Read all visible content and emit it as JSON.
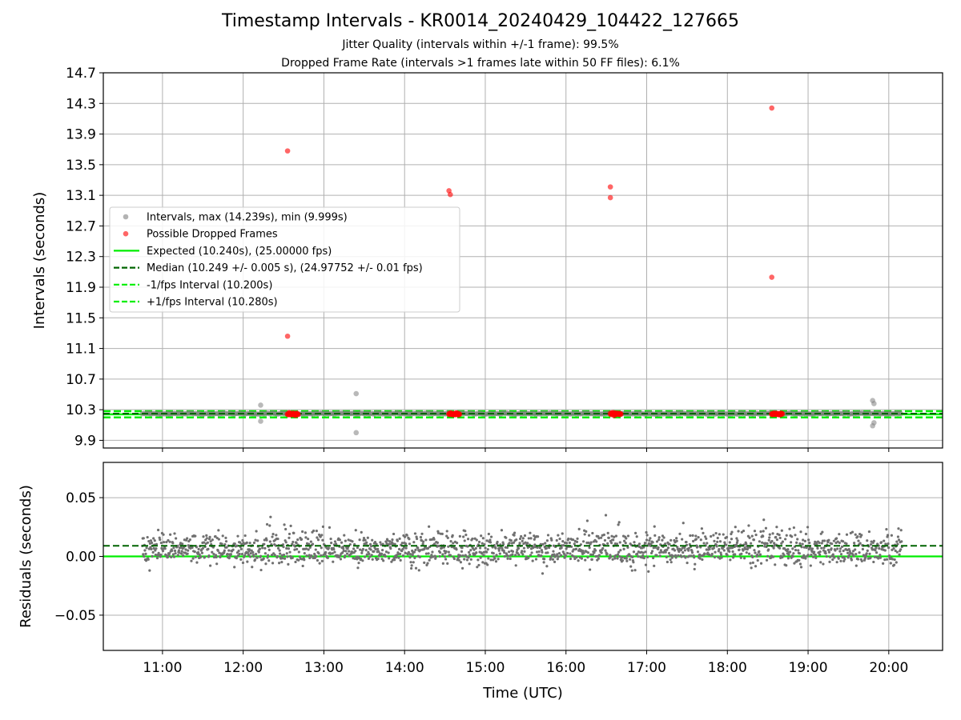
{
  "figure": {
    "title": "Timestamp Intervals - KR0014_20240429_104422_127665",
    "subtitle_1": "Jitter Quality (intervals within +/-1 frame): 99.5%",
    "subtitle_2": "Dropped Frame Rate (intervals >1 frames late within 50 FF files): 6.1%"
  },
  "chart_data": [
    {
      "type": "scatter",
      "panel": "top",
      "ylabel": "Intervals (seconds)",
      "xlabel": "",
      "ylim": [
        9.8,
        14.7
      ],
      "xlim": [
        "10:16",
        "20:40"
      ],
      "yticks": [
        "9.9",
        "10.3",
        "10.7",
        "11.1",
        "11.5",
        "11.9",
        "12.3",
        "12.7",
        "13.1",
        "13.5",
        "13.9",
        "14.3",
        "14.7"
      ],
      "xticks": [
        "11:00",
        "12:00",
        "13:00",
        "14:00",
        "15:00",
        "16:00",
        "17:00",
        "18:00",
        "19:00",
        "20:00"
      ],
      "grid": true,
      "legend_position": "center-left",
      "legend": [
        {
          "label": "Intervals, max (14.239s), min (9.999s)",
          "kind": "marker",
          "color": "#808080"
        },
        {
          "label": "Possible Dropped Frames",
          "kind": "marker",
          "color": "#ff0000"
        },
        {
          "label": "Expected (10.240s), (25.00000 fps)",
          "kind": "solid",
          "color": "#00ee00"
        },
        {
          "label": "Median (10.249 +/- 0.005 s), (24.97752 +/- 0.01 fps)",
          "kind": "dashed",
          "color": "#006400"
        },
        {
          "label": "-1/fps Interval (10.200s)",
          "kind": "dashed",
          "color": "#00ee00"
        },
        {
          "label": "+1/fps Interval (10.280s)",
          "kind": "dashed",
          "color": "#00ee00"
        }
      ],
      "reference_lines": {
        "expected": 10.24,
        "median": 10.249,
        "minus_1fps": 10.2,
        "plus_1fps": 10.28
      },
      "series": [
        {
          "name": "Intervals, max (14.239s), min (9.999s)",
          "color": "#808080",
          "points": [
            {
              "x": "12:13",
              "y": 10.36
            },
            {
              "x": "12:13",
              "y": 10.15
            },
            {
              "x": "13:24",
              "y": 10.51
            },
            {
              "x": "13:24",
              "y": 10.0
            },
            {
              "x": "19:48",
              "y": 10.42
            },
            {
              "x": "19:49",
              "y": 10.38
            },
            {
              "x": "19:49",
              "y": 10.13
            },
            {
              "x": "19:48",
              "y": 10.09
            }
          ],
          "baseline_band": {
            "x_start": "10:45",
            "x_end": "20:10",
            "y": 10.249
          }
        },
        {
          "name": "Possible Dropped Frames",
          "color": "#ff0000",
          "points": [
            {
              "x": "12:33",
              "y": 13.68
            },
            {
              "x": "12:33",
              "y": 11.26
            },
            {
              "x": "14:33",
              "y": 13.16
            },
            {
              "x": "14:34",
              "y": 13.11
            },
            {
              "x": "16:33",
              "y": 13.21
            },
            {
              "x": "16:33",
              "y": 13.07
            },
            {
              "x": "18:33",
              "y": 14.24
            },
            {
              "x": "18:33",
              "y": 12.03
            }
          ],
          "clusters": [
            {
              "x_start": "12:33",
              "x_end": "12:41",
              "y": 10.245
            },
            {
              "x_start": "14:33",
              "x_end": "14:41",
              "y": 10.245
            },
            {
              "x_start": "16:33",
              "x_end": "16:41",
              "y": 10.245
            },
            {
              "x_start": "18:33",
              "x_end": "18:41",
              "y": 10.245
            }
          ]
        }
      ]
    },
    {
      "type": "scatter",
      "panel": "bottom",
      "ylabel": "Residuals (seconds)",
      "xlabel": "Time (UTC)",
      "ylim": [
        -0.08,
        0.08
      ],
      "xlim": [
        "10:16",
        "20:40"
      ],
      "yticks": [
        "0.05",
        "0.00",
        "−0.05"
      ],
      "xticks": [
        "11:00",
        "12:00",
        "13:00",
        "14:00",
        "15:00",
        "16:00",
        "17:00",
        "18:00",
        "19:00",
        "20:00"
      ],
      "grid": true,
      "reference_lines": {
        "zero": 0.0,
        "median_offset": 0.009
      },
      "series": [
        {
          "name": "",
          "color": "#707070",
          "x_range": [
            "10:45",
            "20:10"
          ],
          "center": 0.008,
          "spread": 0.006
        }
      ]
    }
  ]
}
